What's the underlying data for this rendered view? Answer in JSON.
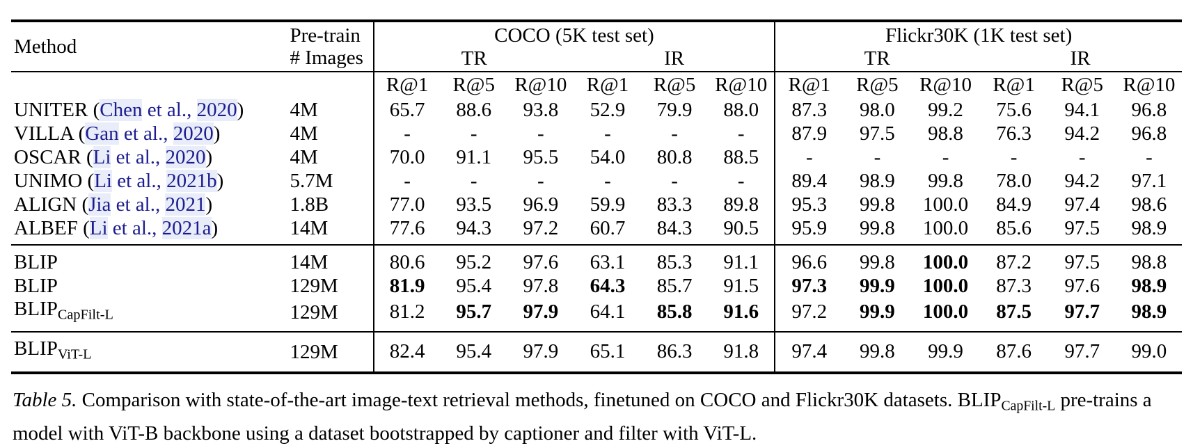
{
  "colors": {
    "text": "#000000",
    "citation": "#1c1c8f",
    "citation_highlight": "#e8edf9",
    "rule": "#000000"
  },
  "header": {
    "method": "Method",
    "pretrain_line1": "Pre-train",
    "pretrain_line2": "# Images",
    "groups": [
      {
        "title": "COCO (5K test set)",
        "left_sub": "TR",
        "right_sub": "IR"
      },
      {
        "title": "Flickr30K (1K test set)",
        "left_sub": "TR",
        "right_sub": "IR"
      }
    ],
    "metric_labels": [
      "R@1",
      "R@5",
      "R@10",
      "R@1",
      "R@5",
      "R@10",
      "R@1",
      "R@5",
      "R@10",
      "R@1",
      "R@5",
      "R@10"
    ]
  },
  "punctuation": {
    "paren_open": "(",
    "paren_close": ")",
    "etal": "et al.,"
  },
  "sections": [
    {
      "name": "pretrained-methods",
      "rows": [
        {
          "method": "UNITER",
          "cite_author": "Chen",
          "cite_year": "2020",
          "pretrain": "4M",
          "values": [
            "65.7",
            "88.6",
            "93.8",
            "52.9",
            "79.9",
            "88.0",
            "87.3",
            "98.0",
            "99.2",
            "75.6",
            "94.1",
            "96.8"
          ],
          "bold": []
        },
        {
          "method": "VILLA",
          "cite_author": "Gan",
          "cite_year": "2020",
          "pretrain": "4M",
          "values": [
            "-",
            "-",
            "-",
            "-",
            "-",
            "-",
            "87.9",
            "97.5",
            "98.8",
            "76.3",
            "94.2",
            "96.8"
          ],
          "bold": []
        },
        {
          "method": "OSCAR",
          "cite_author": "Li",
          "cite_year": "2020",
          "pretrain": "4M",
          "values": [
            "70.0",
            "91.1",
            "95.5",
            "54.0",
            "80.8",
            "88.5",
            "-",
            "-",
            "-",
            "-",
            "-",
            "-"
          ],
          "bold": []
        },
        {
          "method": "UNIMO",
          "cite_author": "Li",
          "cite_year": "2021b",
          "pretrain": "5.7M",
          "values": [
            "-",
            "-",
            "-",
            "-",
            "-",
            "-",
            "89.4",
            "98.9",
            "99.8",
            "78.0",
            "94.2",
            "97.1"
          ],
          "bold": []
        },
        {
          "method": "ALIGN",
          "cite_author": "Jia",
          "cite_year": "2021",
          "pretrain": "1.8B",
          "values": [
            "77.0",
            "93.5",
            "96.9",
            "59.9",
            "83.3",
            "89.8",
            "95.3",
            "99.8",
            "100.0",
            "84.9",
            "97.4",
            "98.6"
          ],
          "bold": []
        },
        {
          "method": "ALBEF",
          "cite_author": "Li",
          "cite_year": "2021a",
          "pretrain": "14M",
          "values": [
            "77.6",
            "94.3",
            "97.2",
            "60.7",
            "84.3",
            "90.5",
            "95.9",
            "99.8",
            "100.0",
            "85.6",
            "97.5",
            "98.9"
          ],
          "bold": []
        }
      ]
    },
    {
      "name": "blip-vit-b",
      "rows": [
        {
          "method": "BLIP",
          "pretrain": "14M",
          "values": [
            "80.6",
            "95.2",
            "97.6",
            "63.1",
            "85.3",
            "91.1",
            "96.6",
            "99.8",
            "100.0",
            "87.2",
            "97.5",
            "98.8"
          ],
          "bold": [
            8
          ]
        },
        {
          "method": "BLIP",
          "pretrain": "129M",
          "values": [
            "81.9",
            "95.4",
            "97.8",
            "64.3",
            "85.7",
            "91.5",
            "97.3",
            "99.9",
            "100.0",
            "87.3",
            "97.6",
            "98.9"
          ],
          "bold": [
            0,
            3,
            6,
            7,
            8,
            11
          ]
        },
        {
          "method": "BLIP",
          "method_sub": "CapFilt-L",
          "pretrain": "129M",
          "values": [
            "81.2",
            "95.7",
            "97.9",
            "64.1",
            "85.8",
            "91.6",
            "97.2",
            "99.9",
            "100.0",
            "87.5",
            "97.7",
            "98.9"
          ],
          "bold": [
            1,
            2,
            4,
            5,
            7,
            8,
            9,
            10,
            11
          ]
        }
      ]
    },
    {
      "name": "blip-vit-l",
      "rows": [
        {
          "method": "BLIP",
          "method_sub": "ViT-L",
          "pretrain": "129M",
          "values": [
            "82.4",
            "95.4",
            "97.9",
            "65.1",
            "86.3",
            "91.8",
            "97.4",
            "99.8",
            "99.9",
            "87.6",
            "97.7",
            "99.0"
          ],
          "bold": []
        }
      ]
    }
  ],
  "caption": {
    "label": "Table 5.",
    "before_sub": " Comparison with state-of-the-art image-text retrieval methods, finetuned on COCO and Flickr30K datasets. BLIP",
    "sub": "CapFilt-L",
    "after_sub": " pre-trains a model with ViT-B backbone using a dataset bootstrapped by captioner and filter with ViT-L."
  }
}
